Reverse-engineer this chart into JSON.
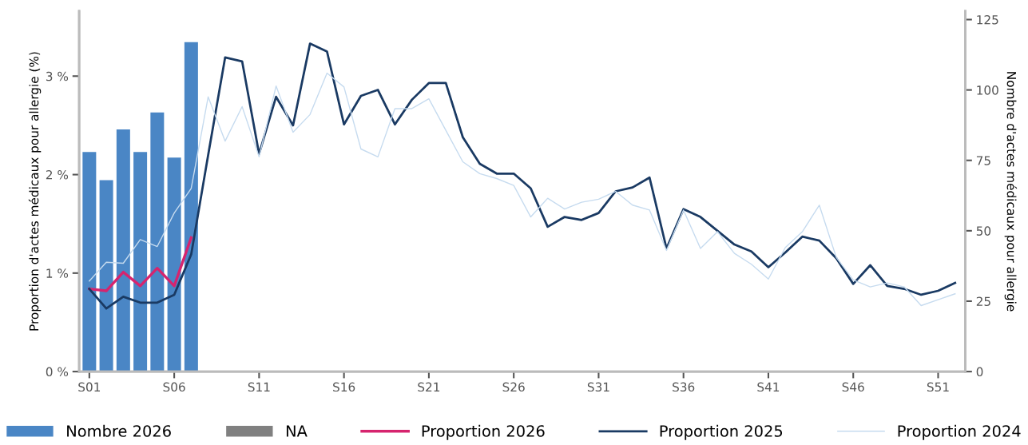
{
  "chart_data": {
    "type": "line",
    "ylabel": "Proportion d'actes médicaux pour allergie (%)",
    "y2label": "Nombre d'actes médicaux pour allergie",
    "categories": [
      "S01",
      null,
      null,
      null,
      null,
      "S06",
      null,
      null,
      null,
      null,
      "S11",
      null,
      null,
      null,
      null,
      "S16",
      null,
      null,
      null,
      null,
      "S21",
      null,
      null,
      null,
      null,
      "S26",
      null,
      null,
      null,
      null,
      "S31",
      null,
      null,
      null,
      null,
      "S36",
      null,
      null,
      null,
      null,
      "S41",
      null,
      null,
      null,
      null,
      "S46",
      null,
      null,
      null,
      null,
      "S51",
      null
    ],
    "ylim": [
      0,
      3.66
    ],
    "yticks": [
      {
        "value": 0,
        "label": "0 %"
      },
      {
        "value": 1,
        "label": "1 %"
      },
      {
        "value": 2,
        "label": "2 %"
      },
      {
        "value": 3,
        "label": "3 %"
      }
    ],
    "y2lim": [
      0,
      128
    ],
    "y2ticks": [
      0,
      25,
      50,
      75,
      100,
      125
    ],
    "grid": false,
    "legend": "bottom",
    "series": [
      {
        "name": "Nombre 2026",
        "type": "bar",
        "axis": "y2",
        "color": "#4a86c5",
        "values": [
          78,
          68,
          86,
          78,
          92,
          76,
          117,
          null,
          null,
          null,
          null,
          null,
          null,
          null,
          null,
          null,
          null,
          null,
          null,
          null,
          null,
          null,
          null,
          null,
          null,
          null,
          null,
          null,
          null,
          null,
          null,
          null,
          null,
          null,
          null,
          null,
          null,
          null,
          null,
          null,
          null,
          null,
          null,
          null,
          null,
          null,
          null,
          null,
          null,
          null,
          null,
          null
        ]
      },
      {
        "name": "NA",
        "type": "bar",
        "axis": "y2",
        "color": "#808080",
        "values": [
          null,
          null,
          null,
          null,
          null,
          null,
          null,
          null,
          null,
          null,
          null,
          null,
          null,
          null,
          null,
          null,
          null,
          null,
          null,
          null,
          null,
          null,
          null,
          null,
          null,
          null,
          null,
          null,
          null,
          null,
          null,
          null,
          null,
          null,
          null,
          null,
          null,
          null,
          null,
          null,
          null,
          null,
          null,
          null,
          null,
          null,
          null,
          null,
          null,
          null,
          null,
          null
        ]
      },
      {
        "name": "Proportion 2026",
        "color": "#d6246e",
        "values": [
          0.84,
          0.82,
          1.01,
          0.87,
          1.05,
          0.87,
          1.36,
          null,
          null,
          null,
          null,
          null,
          null,
          null,
          null,
          null,
          null,
          null,
          null,
          null,
          null,
          null,
          null,
          null,
          null,
          null,
          null,
          null,
          null,
          null,
          null,
          null,
          null,
          null,
          null,
          null,
          null,
          null,
          null,
          null,
          null,
          null,
          null,
          null,
          null,
          null,
          null,
          null,
          null,
          null,
          null,
          null
        ]
      },
      {
        "name": "Proportion 2025",
        "color": "#1a3a63",
        "values": [
          0.84,
          0.64,
          0.76,
          0.7,
          0.7,
          0.78,
          1.19,
          2.2,
          3.19,
          3.15,
          2.21,
          2.79,
          2.5,
          3.33,
          3.25,
          2.51,
          2.8,
          2.86,
          2.51,
          2.76,
          2.93,
          2.93,
          2.38,
          2.11,
          2.01,
          2.01,
          1.86,
          1.47,
          1.57,
          1.54,
          1.61,
          1.83,
          1.87,
          1.97,
          1.25,
          1.65,
          1.57,
          1.43,
          1.29,
          1.22,
          1.06,
          1.21,
          1.37,
          1.33,
          1.15,
          0.89,
          1.08,
          0.87,
          0.84,
          0.78,
          0.82,
          0.9
        ]
      },
      {
        "name": "Proportion 2024",
        "color": "#c6dbef",
        "values": [
          0.92,
          1.11,
          1.1,
          1.34,
          1.27,
          1.61,
          1.86,
          2.79,
          2.34,
          2.69,
          2.18,
          2.9,
          2.43,
          2.61,
          3.03,
          2.89,
          2.26,
          2.18,
          2.67,
          2.67,
          2.77,
          2.45,
          2.13,
          2.01,
          1.96,
          1.89,
          1.57,
          1.76,
          1.65,
          1.72,
          1.75,
          1.83,
          1.69,
          1.64,
          1.23,
          1.64,
          1.25,
          1.42,
          1.2,
          1.09,
          0.94,
          1.26,
          1.42,
          1.69,
          1.16,
          0.93,
          0.86,
          0.9,
          0.86,
          0.67,
          0.73,
          0.79
        ]
      }
    ]
  }
}
